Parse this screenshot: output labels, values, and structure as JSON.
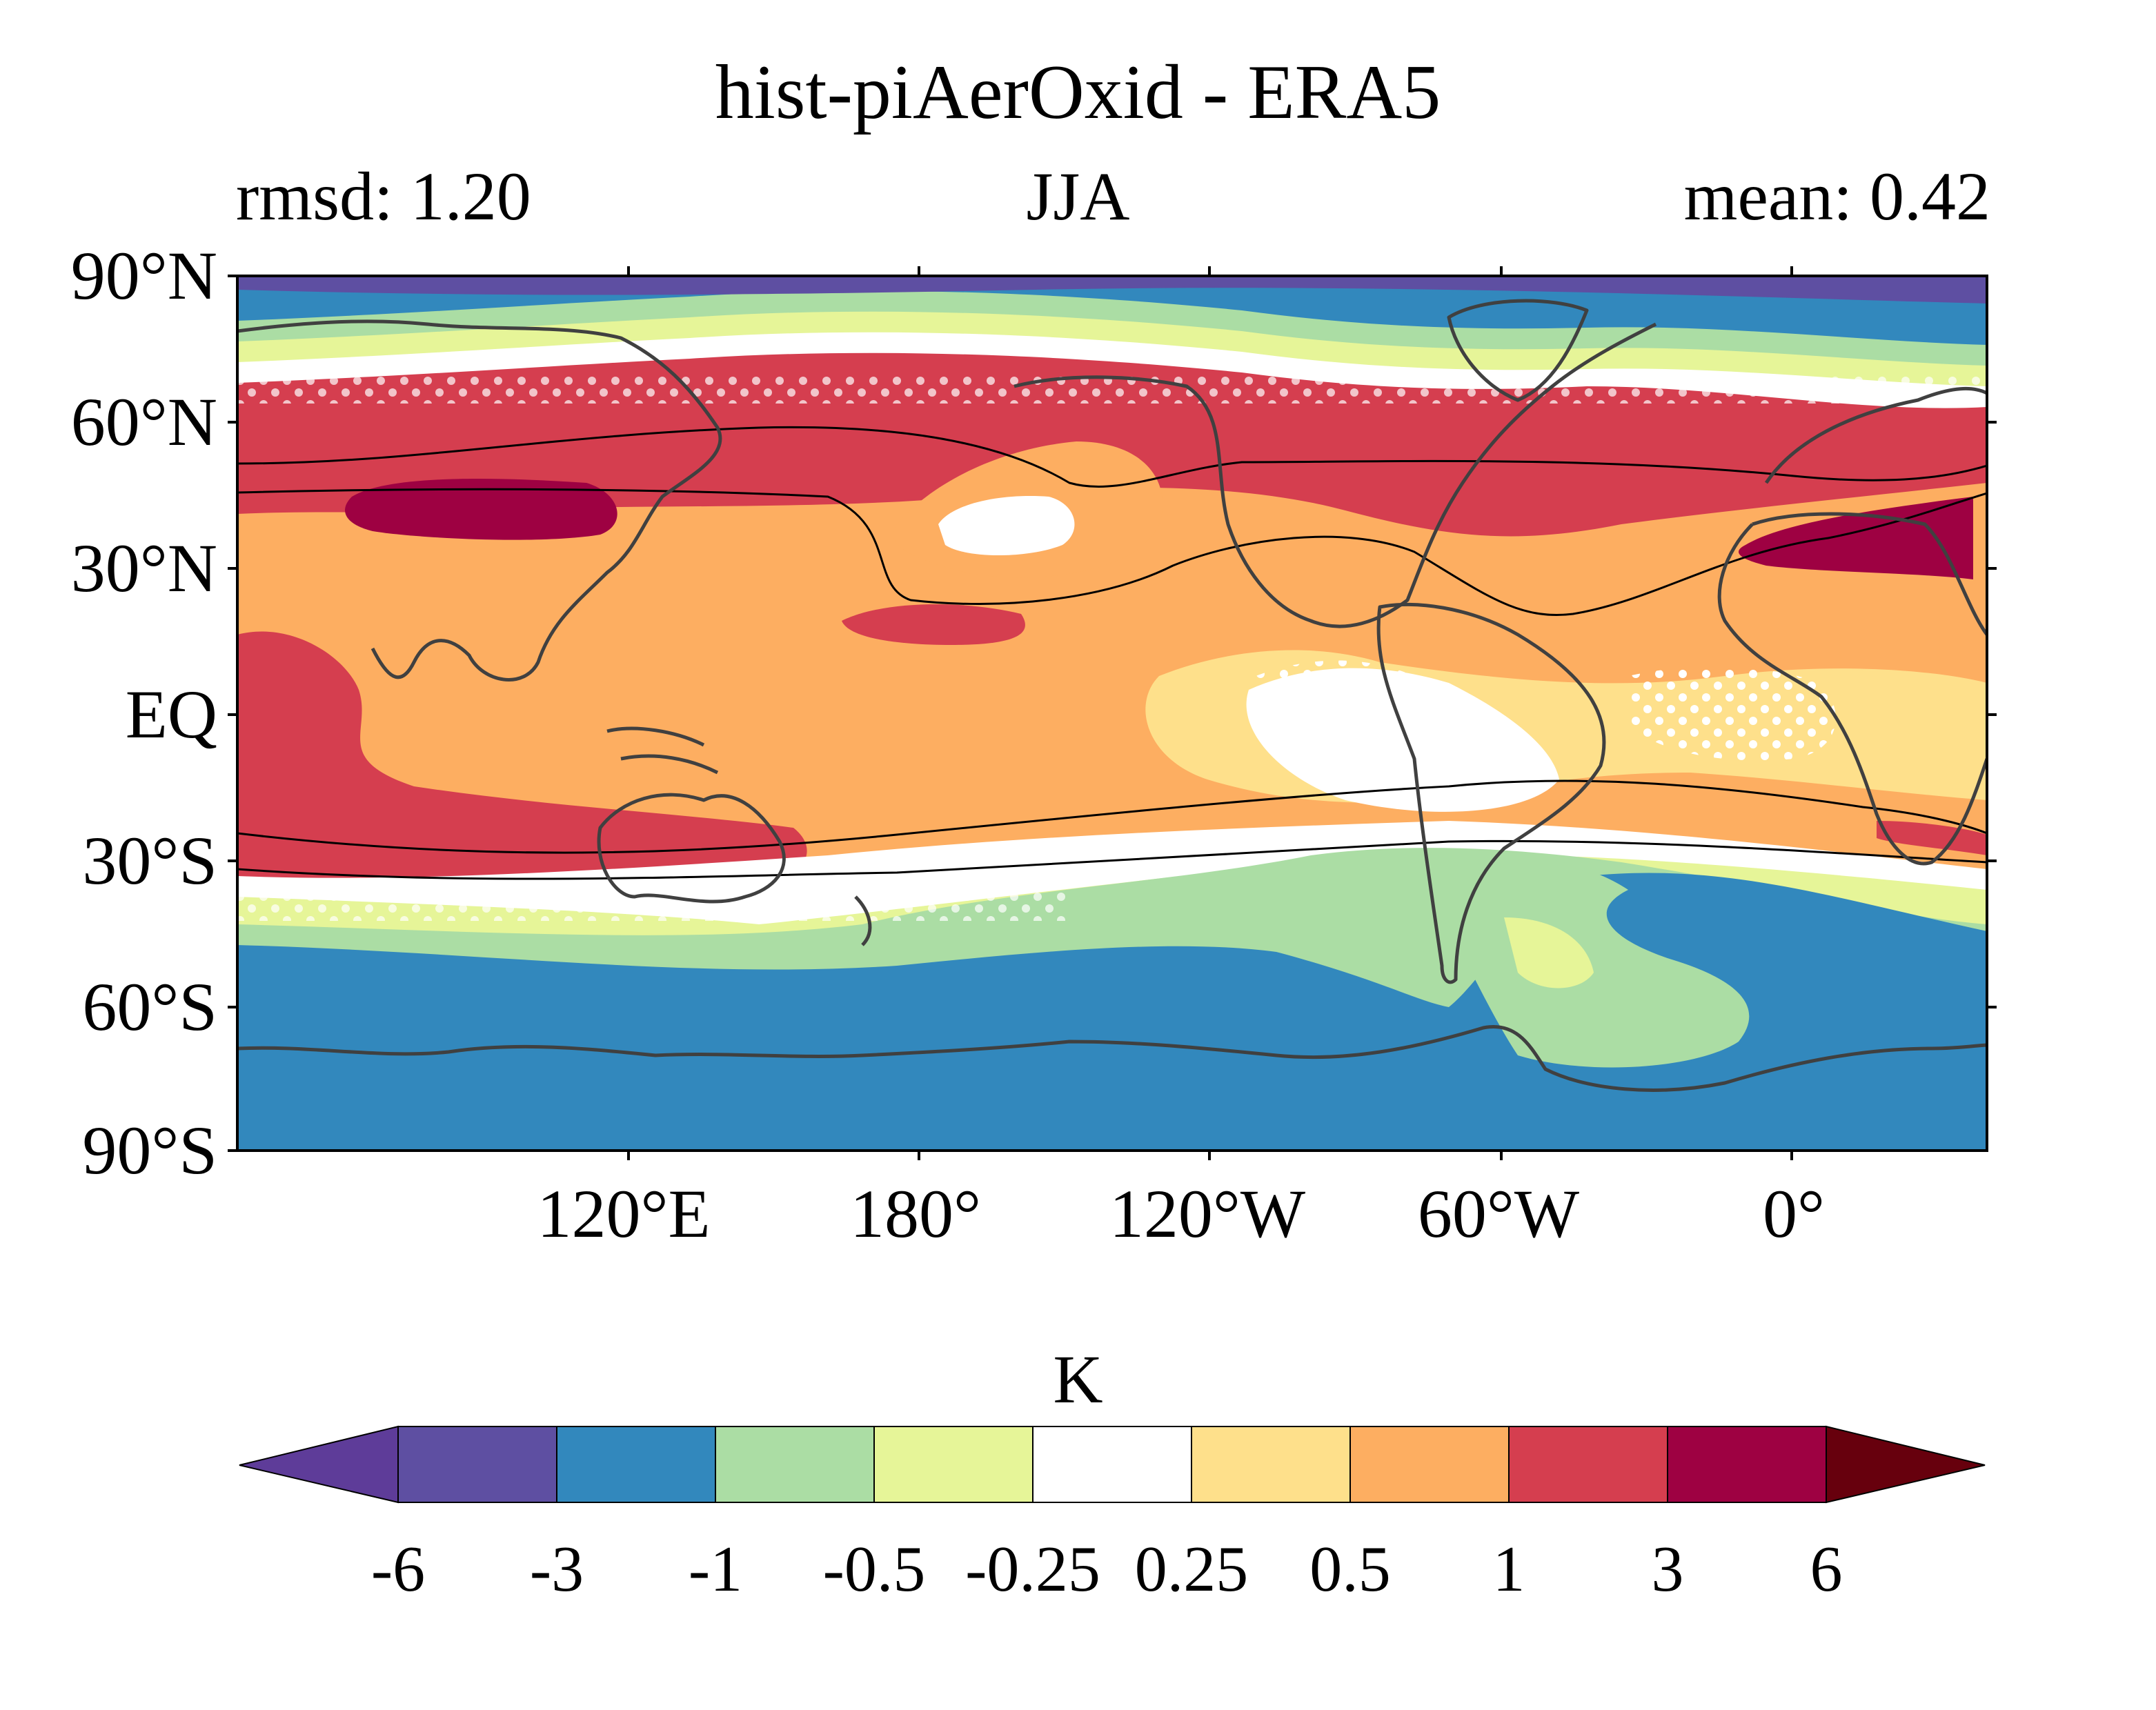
{
  "title": "hist-piAerOxid - ERA5",
  "subtitle": {
    "left": "rmsd: 1.20",
    "center": "JJA",
    "right": "mean: 0.42"
  },
  "lat_labels": [
    "90°N",
    "60°N",
    "30°N",
    "EQ",
    "30°S",
    "60°S",
    "90°S"
  ],
  "lon_labels": [
    "120°E",
    "180°",
    "120°W",
    "60°W",
    "0°"
  ],
  "colorbar": {
    "unit": "K",
    "levels": [
      "-6",
      "-3",
      "-1",
      "-0.5",
      "-0.25",
      "0.25",
      "0.5",
      "1",
      "3",
      "6"
    ],
    "colors": [
      "#5e3c99",
      "#5e4fa2",
      "#3288bd",
      "#abdda4",
      "#e6f598",
      "#ffffff",
      "#fee08b",
      "#fdae61",
      "#d53e4f",
      "#9e0142",
      "#67000d"
    ]
  }
}
